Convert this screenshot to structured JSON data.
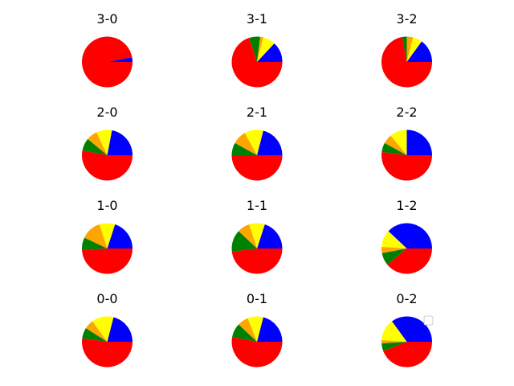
{
  "chart_data": [
    {
      "type": "pie",
      "title": "3-0",
      "series": [
        {
          "name": "blue",
          "value": 3
        },
        {
          "name": "yellow",
          "value": 0
        },
        {
          "name": "orange",
          "value": 0
        },
        {
          "name": "green",
          "value": 0
        },
        {
          "name": "red",
          "value": 97
        }
      ]
    },
    {
      "type": "pie",
      "title": "3-1",
      "series": [
        {
          "name": "blue",
          "value": 13
        },
        {
          "name": "yellow",
          "value": 8
        },
        {
          "name": "orange",
          "value": 2
        },
        {
          "name": "green",
          "value": 7
        },
        {
          "name": "red",
          "value": 70
        }
      ]
    },
    {
      "type": "pie",
      "title": "3-2",
      "series": [
        {
          "name": "blue",
          "value": 15
        },
        {
          "name": "yellow",
          "value": 6
        },
        {
          "name": "orange",
          "value": 4
        },
        {
          "name": "green",
          "value": 3
        },
        {
          "name": "red",
          "value": 72
        }
      ]
    },
    {
      "type": "pie",
      "title": "2-0",
      "series": [
        {
          "name": "blue",
          "value": 22
        },
        {
          "name": "yellow",
          "value": 10
        },
        {
          "name": "orange",
          "value": 7
        },
        {
          "name": "green",
          "value": 8
        },
        {
          "name": "red",
          "value": 53
        }
      ]
    },
    {
      "type": "pie",
      "title": "2-1",
      "series": [
        {
          "name": "blue",
          "value": 21
        },
        {
          "name": "yellow",
          "value": 12
        },
        {
          "name": "orange",
          "value": 9
        },
        {
          "name": "green",
          "value": 8
        },
        {
          "name": "red",
          "value": 50
        }
      ]
    },
    {
      "type": "pie",
      "title": "2-2",
      "series": [
        {
          "name": "blue",
          "value": 25
        },
        {
          "name": "yellow",
          "value": 11
        },
        {
          "name": "orange",
          "value": 6
        },
        {
          "name": "green",
          "value": 6
        },
        {
          "name": "red",
          "value": 52
        }
      ]
    },
    {
      "type": "pie",
      "title": "1-0",
      "series": [
        {
          "name": "blue",
          "value": 20
        },
        {
          "name": "yellow",
          "value": 10
        },
        {
          "name": "orange",
          "value": 13
        },
        {
          "name": "green",
          "value": 8
        },
        {
          "name": "red",
          "value": 49
        }
      ]
    },
    {
      "type": "pie",
      "title": "1-1",
      "series": [
        {
          "name": "blue",
          "value": 20
        },
        {
          "name": "yellow",
          "value": 10
        },
        {
          "name": "orange",
          "value": 8
        },
        {
          "name": "green",
          "value": 14
        },
        {
          "name": "red",
          "value": 48
        }
      ]
    },
    {
      "type": "pie",
      "title": "1-2",
      "series": [
        {
          "name": "blue",
          "value": 38
        },
        {
          "name": "yellow",
          "value": 11
        },
        {
          "name": "orange",
          "value": 4
        },
        {
          "name": "green",
          "value": 8
        },
        {
          "name": "red",
          "value": 39
        }
      ]
    },
    {
      "type": "pie",
      "title": "0-0",
      "series": [
        {
          "name": "blue",
          "value": 21
        },
        {
          "name": "yellow",
          "value": 14
        },
        {
          "name": "orange",
          "value": 6
        },
        {
          "name": "green",
          "value": 7
        },
        {
          "name": "red",
          "value": 52
        }
      ]
    },
    {
      "type": "pie",
      "title": "0-1",
      "series": [
        {
          "name": "blue",
          "value": 21
        },
        {
          "name": "yellow",
          "value": 10
        },
        {
          "name": "orange",
          "value": 7
        },
        {
          "name": "green",
          "value": 9
        },
        {
          "name": "red",
          "value": 53
        }
      ]
    },
    {
      "type": "pie",
      "title": "0-2",
      "series": [
        {
          "name": "blue",
          "value": 35
        },
        {
          "name": "yellow",
          "value": 14
        },
        {
          "name": "orange",
          "value": 2
        },
        {
          "name": "green",
          "value": 5
        },
        {
          "name": "red",
          "value": 44
        }
      ]
    }
  ],
  "colors": {
    "blue": "#0000ff",
    "yellow": "#ffff00",
    "orange": "#ffa500",
    "green": "#008000",
    "red": "#ff0000"
  },
  "legend": {
    "entries": [],
    "placement": "top-right"
  }
}
